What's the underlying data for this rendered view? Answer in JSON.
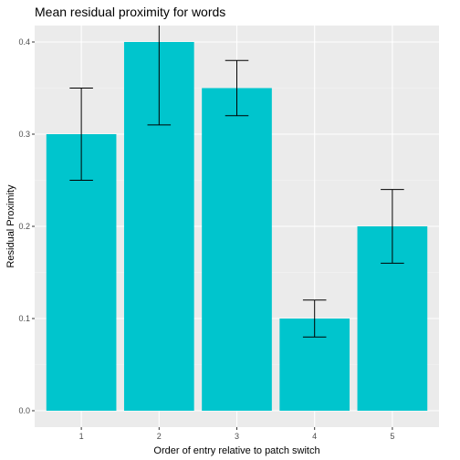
{
  "chart_data": {
    "type": "bar",
    "title": "Mean residual proximity for words",
    "xlabel": "Order of entry relative to patch switch",
    "ylabel": "Residual Proximity",
    "categories": [
      "1",
      "2",
      "3",
      "4",
      "5"
    ],
    "values": [
      0.3,
      0.4,
      0.35,
      0.1,
      0.2
    ],
    "error_low": [
      0.25,
      0.31,
      0.32,
      0.08,
      0.16
    ],
    "error_high": [
      0.35,
      0.42,
      0.38,
      0.12,
      0.24
    ],
    "ylim": [
      0,
      0.42
    ],
    "y_ticks": [
      0.0,
      0.1,
      0.2,
      0.3,
      0.4
    ],
    "y_tick_labels": [
      "0.0",
      "0.1",
      "0.2",
      "0.3",
      "0.4"
    ],
    "grid": true,
    "colors": {
      "bar": "#00C5CD",
      "panel": "#EBEBEB",
      "grid_major": "#FFFFFF",
      "grid_minor": "#F5F5F5",
      "error_bar": "#000000"
    }
  }
}
